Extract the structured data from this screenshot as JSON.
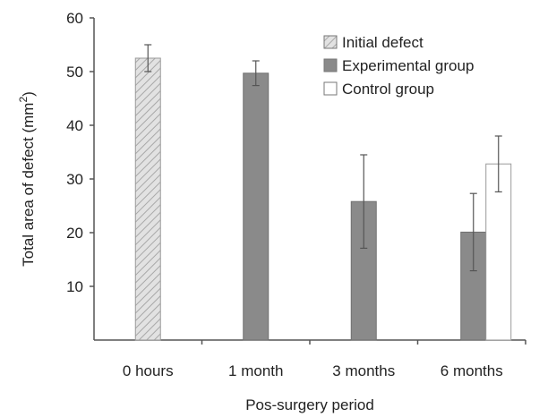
{
  "chart_data": {
    "type": "bar",
    "xlabel": "Pos-surgery period",
    "ylabel": "Total area of defect (mm",
    "ylabel_superscript": "2",
    "ylabel_suffix": ")",
    "ylim": [
      0,
      60
    ],
    "yticks": [
      10,
      20,
      30,
      40,
      50,
      60
    ],
    "categories": [
      "0 hours",
      "1 month",
      "3 months",
      "6 months"
    ],
    "legend_position": "top-right",
    "grid": false,
    "series": [
      {
        "name": "Initial defect",
        "color": "#d4d4d4",
        "pattern": "hatched",
        "values": [
          52.5,
          null,
          null,
          null
        ],
        "errors": [
          2.5,
          null,
          null,
          null
        ]
      },
      {
        "name": "Experimental group",
        "color": "#8a8a8a",
        "pattern": "solid",
        "values": [
          null,
          49.7,
          25.8,
          20.1
        ],
        "errors": [
          null,
          2.3,
          8.7,
          7.2
        ]
      },
      {
        "name": "Control group",
        "color": "#ffffff",
        "pattern": "outline",
        "values": [
          null,
          null,
          null,
          32.8
        ],
        "errors": [
          null,
          null,
          null,
          5.2
        ]
      }
    ]
  }
}
